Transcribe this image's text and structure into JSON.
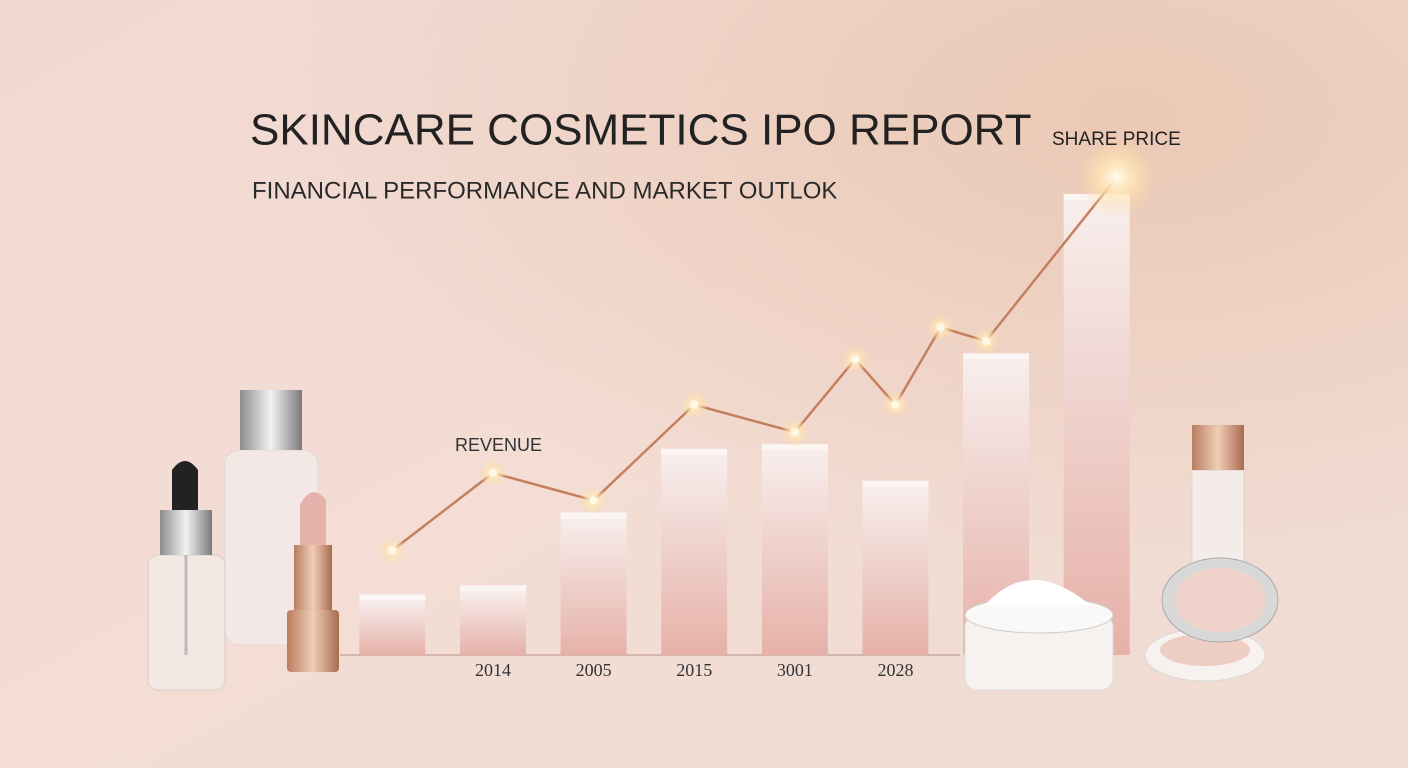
{
  "chart_data": {
    "type": "bar",
    "title": "SKINCARE COSMETICS IPO REPORT",
    "subtitle": "FINANCIAL PERFORMANCE AND MARKET OUTLOK",
    "categories": [
      null,
      "2014",
      "2005",
      "2015",
      "3001",
      "2028",
      null,
      null
    ],
    "ylim": [
      0,
      110
    ],
    "xlim": [
      -0.5,
      7.5
    ],
    "series": [
      {
        "name": "REVENUE",
        "type": "bar",
        "color": "#e8b4ac",
        "values": [
          12,
          14,
          30,
          44,
          45,
          37,
          65,
          100
        ]
      },
      {
        "name": "SHARE PRICE",
        "type": "line",
        "color": "#c4805e",
        "x": [
          0,
          1,
          2,
          3,
          4,
          4.6,
          5,
          5.45,
          5.9,
          7.2
        ],
        "values": [
          23,
          40,
          34,
          55,
          49,
          65,
          55,
          72,
          69,
          105
        ]
      }
    ]
  }
}
